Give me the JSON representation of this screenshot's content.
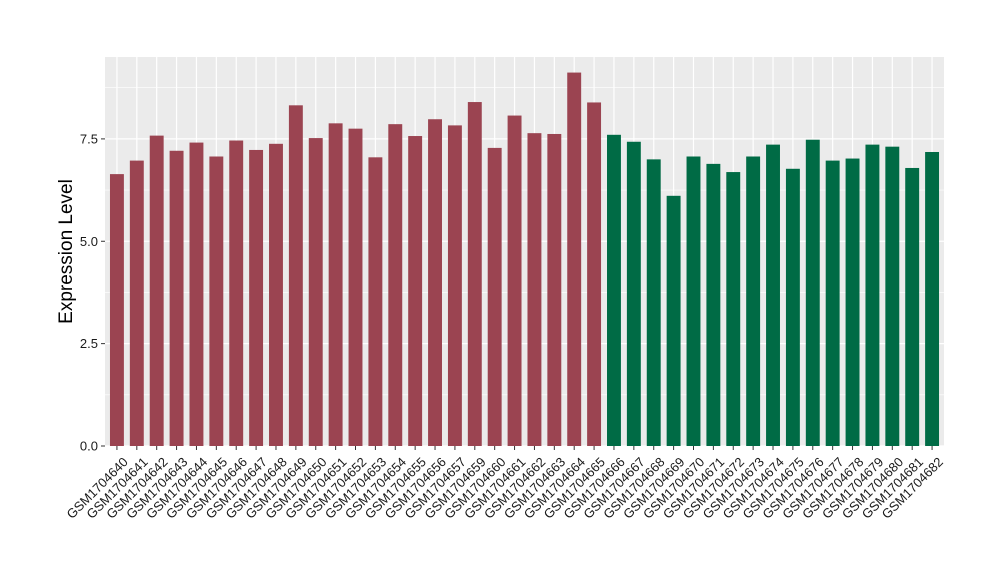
{
  "chart_data": {
    "type": "bar",
    "title": "",
    "xlabel": "",
    "ylabel": "Expression Level",
    "ylim": [
      0,
      9.5
    ],
    "yticks": [
      0.0,
      2.5,
      5.0,
      7.5
    ],
    "ytick_labels": [
      "0.0",
      "2.5",
      "5.0",
      "7.5"
    ],
    "grid": true,
    "legend": "none",
    "background": "#ebebeb",
    "grid_color": "#ffffff",
    "group_colors": [
      "#9b4451",
      "#006b45"
    ],
    "categories": [
      "GSM1704640",
      "GSM1704641",
      "GSM1704642",
      "GSM1704643",
      "GSM1704644",
      "GSM1704645",
      "GSM1704646",
      "GSM1704647",
      "GSM1704648",
      "GSM1704649",
      "GSM1704650",
      "GSM1704651",
      "GSM1704652",
      "GSM1704653",
      "GSM1704654",
      "GSM1704655",
      "GSM1704656",
      "GSM1704657",
      "GSM1704659",
      "GSM1704660",
      "GSM1704661",
      "GSM1704662",
      "GSM1704663",
      "GSM1704664",
      "GSM1704665",
      "GSM1704666",
      "GSM1704667",
      "GSM1704668",
      "GSM1704669",
      "GSM1704670",
      "GSM1704671",
      "GSM1704672",
      "GSM1704673",
      "GSM1704674",
      "GSM1704675",
      "GSM1704676",
      "GSM1704677",
      "GSM1704678",
      "GSM1704679",
      "GSM1704680",
      "GSM1704681",
      "GSM1704682"
    ],
    "values": [
      6.64,
      6.97,
      7.58,
      7.21,
      7.41,
      7.07,
      7.46,
      7.23,
      7.38,
      8.32,
      7.52,
      7.88,
      7.75,
      7.05,
      7.86,
      7.57,
      7.98,
      7.83,
      8.4,
      7.28,
      8.07,
      7.64,
      7.62,
      9.12,
      8.39,
      7.6,
      7.43,
      7.0,
      6.11,
      7.07,
      6.89,
      6.69,
      7.07,
      7.36,
      6.77,
      7.48,
      6.97,
      7.02,
      7.36,
      7.31,
      6.79,
      7.18
    ],
    "groups": [
      0,
      0,
      0,
      0,
      0,
      0,
      0,
      0,
      0,
      0,
      0,
      0,
      0,
      0,
      0,
      0,
      0,
      0,
      0,
      0,
      0,
      0,
      0,
      0,
      0,
      1,
      1,
      1,
      1,
      1,
      1,
      1,
      1,
      1,
      1,
      1,
      1,
      1,
      1,
      1,
      1,
      1
    ]
  }
}
